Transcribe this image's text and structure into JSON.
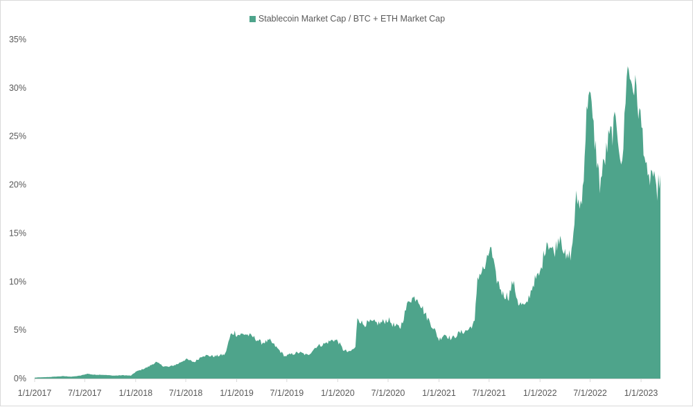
{
  "chart_data": {
    "type": "area",
    "title": "",
    "legend": {
      "position": "top",
      "entries": [
        "Stablecoin Market Cap / BTC + ETH Market Cap"
      ]
    },
    "series": [
      {
        "name": "Stablecoin Market Cap / BTC + ETH Market Cap",
        "color": "#4ea48b",
        "points": [
          [
            "2017-01-01",
            0.001
          ],
          [
            "2017-02-15",
            0.0015
          ],
          [
            "2017-03-15",
            0.002
          ],
          [
            "2017-04-15",
            0.0025
          ],
          [
            "2017-05-15",
            0.002
          ],
          [
            "2017-06-15",
            0.003
          ],
          [
            "2017-07-10",
            0.005
          ],
          [
            "2017-08-01",
            0.004
          ],
          [
            "2017-09-01",
            0.004
          ],
          [
            "2017-10-15",
            0.003
          ],
          [
            "2017-11-15",
            0.0035
          ],
          [
            "2017-12-15",
            0.003
          ],
          [
            "2018-01-01",
            0.007
          ],
          [
            "2018-01-20",
            0.009
          ],
          [
            "2018-02-15",
            0.012
          ],
          [
            "2018-03-15",
            0.017
          ],
          [
            "2018-04-10",
            0.013
          ],
          [
            "2018-05-01",
            0.012
          ],
          [
            "2018-06-01",
            0.015
          ],
          [
            "2018-07-01",
            0.02
          ],
          [
            "2018-08-01",
            0.017
          ],
          [
            "2018-09-01",
            0.024
          ],
          [
            "2018-10-15",
            0.023
          ],
          [
            "2018-11-20",
            0.025
          ],
          [
            "2018-12-10",
            0.045
          ],
          [
            "2018-12-25",
            0.048
          ],
          [
            "2019-01-01",
            0.045
          ],
          [
            "2019-02-01",
            0.046
          ],
          [
            "2019-03-01",
            0.043
          ],
          [
            "2019-04-01",
            0.037
          ],
          [
            "2019-05-01",
            0.039
          ],
          [
            "2019-06-01",
            0.03
          ],
          [
            "2019-06-25",
            0.023
          ],
          [
            "2019-07-15",
            0.025
          ],
          [
            "2019-08-15",
            0.027
          ],
          [
            "2019-09-15",
            0.024
          ],
          [
            "2019-10-15",
            0.033
          ],
          [
            "2019-11-15",
            0.036
          ],
          [
            "2019-12-15",
            0.04
          ],
          [
            "2020-01-01",
            0.039
          ],
          [
            "2020-01-20",
            0.03
          ],
          [
            "2020-02-10",
            0.027
          ],
          [
            "2020-03-05",
            0.032
          ],
          [
            "2020-03-12",
            0.064
          ],
          [
            "2020-04-01",
            0.056
          ],
          [
            "2020-05-01",
            0.058
          ],
          [
            "2020-06-01",
            0.057
          ],
          [
            "2020-07-01",
            0.061
          ],
          [
            "2020-07-25",
            0.054
          ],
          [
            "2020-08-15",
            0.053
          ],
          [
            "2020-09-15",
            0.082
          ],
          [
            "2020-10-15",
            0.084
          ],
          [
            "2020-11-15",
            0.065
          ],
          [
            "2020-12-15",
            0.051
          ],
          [
            "2021-01-01",
            0.04
          ],
          [
            "2021-01-20",
            0.046
          ],
          [
            "2021-02-15",
            0.041
          ],
          [
            "2021-03-15",
            0.047
          ],
          [
            "2021-04-15",
            0.05
          ],
          [
            "2021-05-10",
            0.058
          ],
          [
            "2021-05-20",
            0.105
          ],
          [
            "2021-06-20",
            0.116
          ],
          [
            "2021-07-05",
            0.137
          ],
          [
            "2021-07-25",
            0.105
          ],
          [
            "2021-08-20",
            0.087
          ],
          [
            "2021-09-10",
            0.085
          ],
          [
            "2021-09-25",
            0.1
          ],
          [
            "2021-10-15",
            0.078
          ],
          [
            "2021-11-10",
            0.074
          ],
          [
            "2021-12-10",
            0.1
          ],
          [
            "2022-01-01",
            0.108
          ],
          [
            "2022-01-25",
            0.143
          ],
          [
            "2022-02-20",
            0.13
          ],
          [
            "2022-03-15",
            0.15
          ],
          [
            "2022-04-05",
            0.122
          ],
          [
            "2022-04-25",
            0.13
          ],
          [
            "2022-05-12",
            0.185
          ],
          [
            "2022-06-01",
            0.18
          ],
          [
            "2022-06-18",
            0.27
          ],
          [
            "2022-06-25",
            0.304
          ],
          [
            "2022-07-10",
            0.265
          ],
          [
            "2022-08-05",
            0.2
          ],
          [
            "2022-09-05",
            0.245
          ],
          [
            "2022-10-05",
            0.265
          ],
          [
            "2022-10-25",
            0.215
          ],
          [
            "2022-11-10",
            0.32
          ],
          [
            "2022-11-25",
            0.31
          ],
          [
            "2022-12-15",
            0.295
          ],
          [
            "2023-01-10",
            0.245
          ],
          [
            "2023-01-25",
            0.2
          ],
          [
            "2023-02-10",
            0.215
          ],
          [
            "2023-02-25",
            0.19
          ],
          [
            "2023-03-12",
            0.21
          ]
        ]
      }
    ],
    "x_axis": {
      "ticks": [
        "1/1/2017",
        "7/1/2017",
        "1/1/2018",
        "7/1/2018",
        "1/1/2019",
        "7/1/2019",
        "1/1/2020",
        "7/1/2020",
        "1/1/2021",
        "7/1/2021",
        "1/1/2022",
        "7/1/2022",
        "1/1/2023"
      ],
      "range": [
        "2017-01-01",
        "2023-03-12"
      ]
    },
    "y_axis": {
      "ticks": [
        "0%",
        "5%",
        "10%",
        "15%",
        "20%",
        "25%",
        "30%",
        "35%"
      ],
      "ylim": [
        0,
        0.35
      ],
      "format": "percent"
    },
    "grid": false
  }
}
